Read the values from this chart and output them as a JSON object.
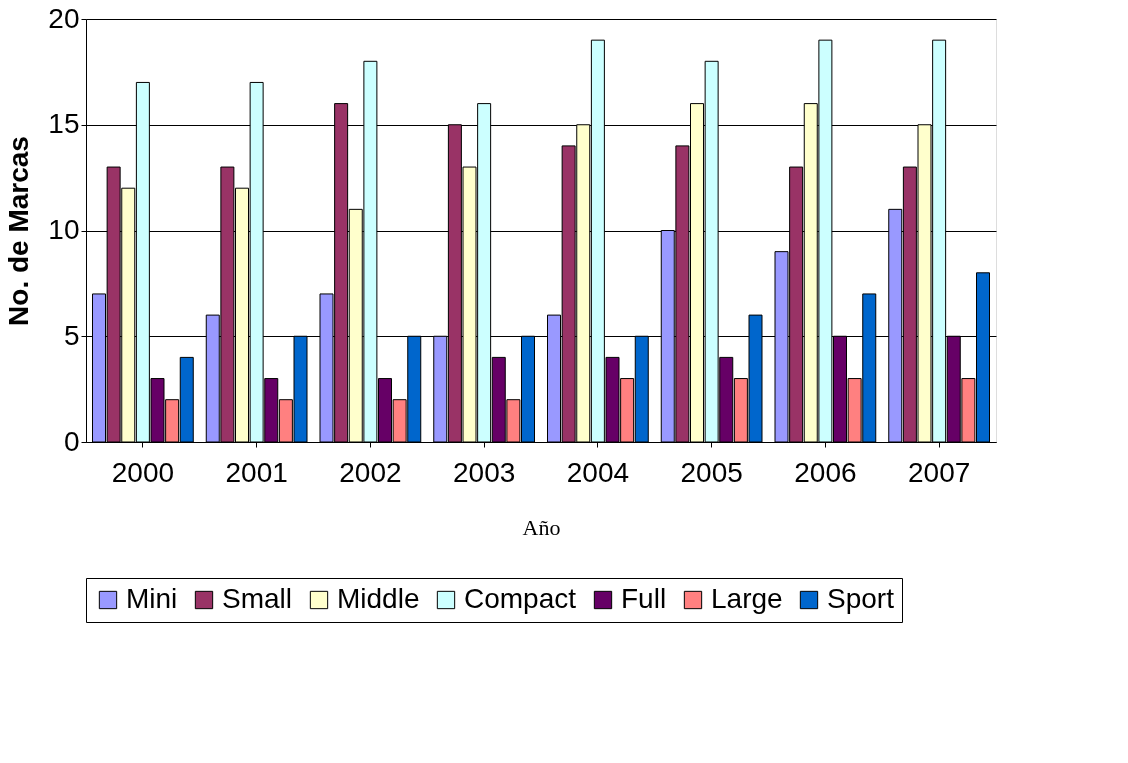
{
  "chart_data": {
    "type": "bar",
    "xlabel": "Año",
    "ylabel": "No. de Marcas",
    "categories": [
      "2000",
      "2001",
      "2002",
      "2003",
      "2004",
      "2005",
      "2006",
      "2007"
    ],
    "series": [
      {
        "name": "Mini",
        "color": "#9999ff",
        "values": [
          7,
          6,
          7,
          5,
          6,
          10,
          9,
          11
        ]
      },
      {
        "name": "Small",
        "color": "#993366",
        "values": [
          13,
          13,
          16,
          15,
          14,
          14,
          13,
          13
        ]
      },
      {
        "name": "Middle",
        "color": "#ffffcc",
        "values": [
          12,
          12,
          11,
          13,
          15,
          16,
          16,
          15
        ]
      },
      {
        "name": "Compact",
        "color": "#ccffff",
        "values": [
          17,
          17,
          18,
          16,
          19,
          18,
          19,
          19
        ]
      },
      {
        "name": "Full",
        "color": "#660066",
        "values": [
          3,
          3,
          3,
          4,
          4,
          4,
          5,
          5
        ]
      },
      {
        "name": "Large",
        "color": "#ff8080",
        "values": [
          2,
          2,
          2,
          2,
          3,
          3,
          3,
          3
        ]
      },
      {
        "name": "Sport",
        "color": "#0066cc",
        "values": [
          4,
          5,
          5,
          5,
          5,
          6,
          7,
          8
        ]
      }
    ],
    "ylim": [
      0,
      20
    ],
    "yticks": [
      0,
      5,
      10,
      15,
      20
    ],
    "grid": "y",
    "legend": "bottom"
  }
}
